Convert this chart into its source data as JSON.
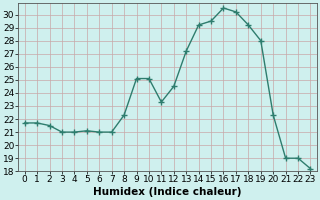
{
  "xlabel": "Humidex (Indice chaleur)",
  "x": [
    0,
    1,
    2,
    3,
    4,
    5,
    6,
    7,
    8,
    9,
    10,
    11,
    12,
    13,
    14,
    15,
    16,
    17,
    18,
    19,
    20,
    21,
    22,
    23
  ],
  "y": [
    21.7,
    21.7,
    21.5,
    21.0,
    21.0,
    21.1,
    21.0,
    21.0,
    22.3,
    25.1,
    25.1,
    23.3,
    24.5,
    27.2,
    29.2,
    29.5,
    30.5,
    30.2,
    29.2,
    28.0,
    22.3,
    19.0,
    19.0,
    18.2
  ],
  "line_color": "#2e7d6e",
  "marker": "+",
  "marker_size": 4,
  "bg_color": "#cff0ee",
  "grid_color_major": "#c8a8a8",
  "ylim": [
    18,
    30.9
  ],
  "yticks": [
    18,
    19,
    20,
    21,
    22,
    23,
    24,
    25,
    26,
    27,
    28,
    29,
    30
  ],
  "xlim": [
    -0.5,
    23.5
  ],
  "tick_fontsize": 6.5,
  "label_fontsize": 7.5
}
